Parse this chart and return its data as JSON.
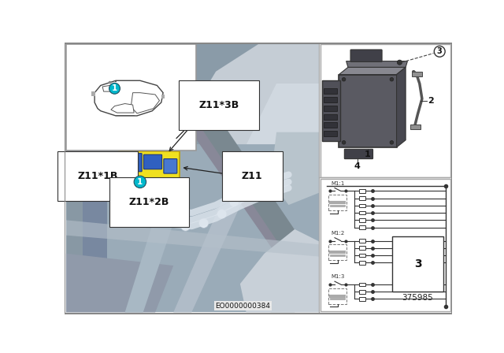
{
  "bg_color": "#ffffff",
  "teal_color": "#00b8cc",
  "yellow_color": "#f0e020",
  "blue_color": "#3060c0",
  "bottom_label": "EO0000000384",
  "part_number": "375985",
  "labels": {
    "z11_3b": "Z11*3B",
    "z11_1b": "Z11*1B",
    "z11_2b": "Z11*2B",
    "z11": "Z11"
  },
  "engine_bg": "#8a9aaa",
  "engine_mid": "#a0b0be",
  "engine_dark": "#606878",
  "engine_light": "#c8d0d8",
  "silver": "#b8c4cc",
  "car_panel_bg": "#ffffff",
  "car_outline": "#444444",
  "label_bg": "#ffffff",
  "label_border": "#333333",
  "arrow_color": "#222222",
  "panel_border": "#aaaaaa",
  "circuit_line": "#333333",
  "mod_dark": "#606068",
  "mod_mid": "#787880",
  "mod_light": "#909098"
}
